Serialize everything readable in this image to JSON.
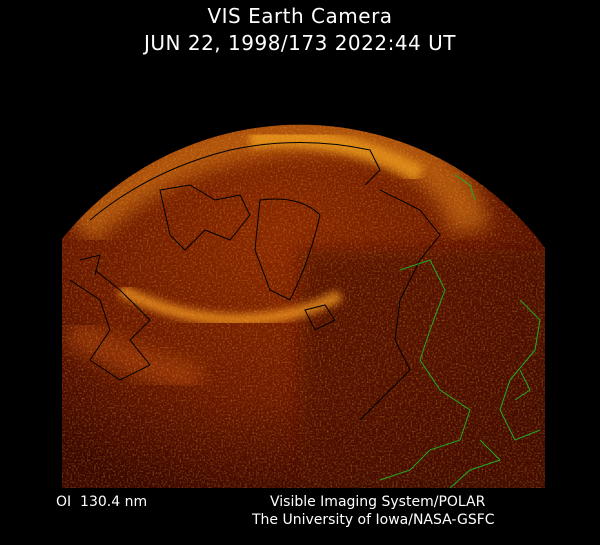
{
  "header": {
    "title": "VIS Earth Camera",
    "timestamp": "JUN 22, 1998/173 2022:44 UT"
  },
  "footer": {
    "band": "OI  130.4 nm",
    "instrument": "Visible Imaging System/POLAR",
    "institution": "The University of Iowa/NASA-GSFC"
  },
  "image": {
    "subject": "auroral oval over northern hemisphere",
    "colors": {
      "background": "#000000",
      "disk": "#4a0a00",
      "aurora": "#ffb020",
      "coastline_day": "#000000",
      "coastline_night": "#22aa22"
    }
  }
}
